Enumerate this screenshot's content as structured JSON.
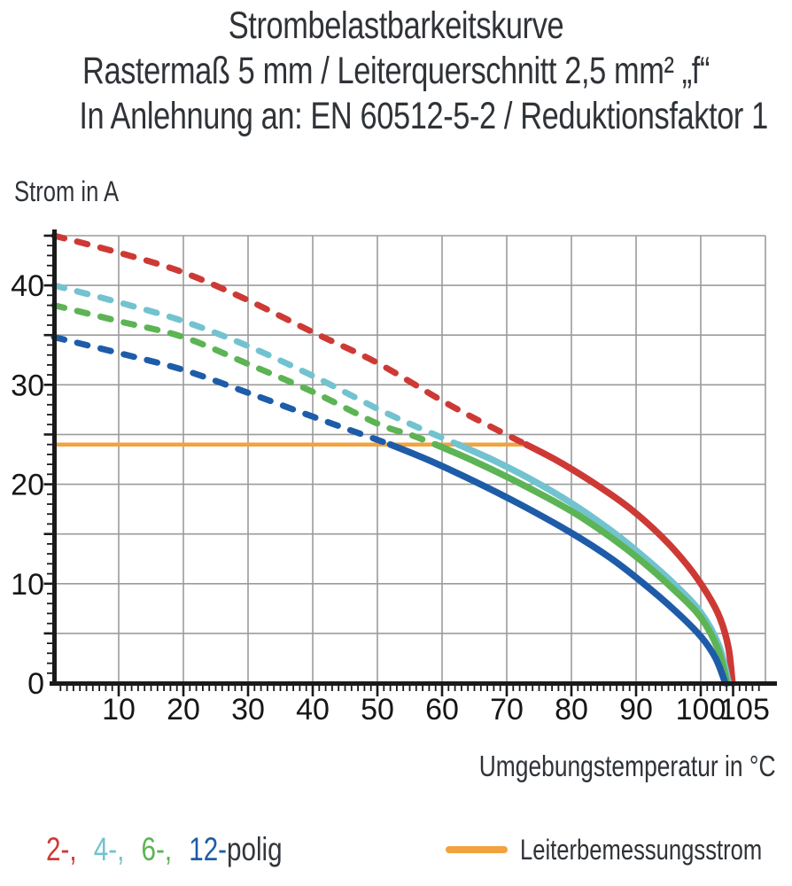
{
  "title": {
    "line1": "Strombelastbarkeitskurve",
    "line2": "Rastermaß 5 mm / Leiterquerschnitt 2,5 mm² „f“",
    "line3": "In Anlehnung an: EN 60512-5-2 / Reduktionsfaktor 1"
  },
  "chart_data": {
    "type": "line",
    "title": "Strombelastbarkeitskurve",
    "ylabel": "Strom in A",
    "xlabel": "Umgebungstemperatur in °C",
    "xlim": [
      0,
      110
    ],
    "ylim": [
      0,
      45
    ],
    "grid": true,
    "grid_step_x": 10,
    "grid_step_y": 5,
    "x_tick_labels": [
      10,
      20,
      30,
      40,
      50,
      60,
      70,
      80,
      90,
      100,
      105
    ],
    "y_tick_labels": [
      0,
      10,
      20,
      30,
      40
    ],
    "colors": {
      "grid": "#9b9b9b",
      "axis": "#1a1a1a",
      "tick_text": "#161616"
    },
    "series": [
      {
        "name": "2-polig",
        "color": "#cd3a35",
        "dashed_points": [
          [
            0,
            45
          ],
          [
            10,
            43.3
          ],
          [
            20,
            41.3
          ],
          [
            30,
            38.5
          ],
          [
            40,
            35.3
          ],
          [
            50,
            32.2
          ],
          [
            60,
            28.4
          ],
          [
            66,
            26.3
          ],
          [
            73,
            24
          ]
        ],
        "solid_points": [
          [
            73,
            24
          ],
          [
            78,
            22.3
          ],
          [
            84,
            19.9
          ],
          [
            89,
            17.6
          ],
          [
            94,
            14.7
          ],
          [
            98,
            11.8
          ],
          [
            101,
            9
          ],
          [
            103,
            6.5
          ],
          [
            104.3,
            3.5
          ],
          [
            104.9,
            0
          ]
        ]
      },
      {
        "name": "4-polig",
        "color": "#72c3cf",
        "dashed_points": [
          [
            0,
            40
          ],
          [
            10,
            38.3
          ],
          [
            20,
            36.4
          ],
          [
            30,
            33.9
          ],
          [
            40,
            30.9
          ],
          [
            50,
            27.6
          ],
          [
            56,
            25.8
          ],
          [
            62.5,
            24
          ]
        ],
        "solid_points": [
          [
            62.5,
            24
          ],
          [
            68,
            22.4
          ],
          [
            74,
            20.4
          ],
          [
            80,
            18.1
          ],
          [
            86,
            15.4
          ],
          [
            91,
            12.8
          ],
          [
            96,
            9.9
          ],
          [
            100,
            7.1
          ],
          [
            102.8,
            3.8
          ],
          [
            104.3,
            0
          ]
        ]
      },
      {
        "name": "6-polig",
        "color": "#5cb454",
        "dashed_points": [
          [
            0,
            38
          ],
          [
            10,
            36.4
          ],
          [
            20,
            34.8
          ],
          [
            30,
            32.1
          ],
          [
            40,
            29.3
          ],
          [
            50,
            26.1
          ],
          [
            55,
            25
          ],
          [
            59,
            24
          ]
        ],
        "solid_points": [
          [
            59,
            24
          ],
          [
            65,
            22.3
          ],
          [
            72,
            20.1
          ],
          [
            80,
            17.3
          ],
          [
            86,
            14.7
          ],
          [
            91,
            12.2
          ],
          [
            96,
            9.3
          ],
          [
            100,
            6.6
          ],
          [
            102.6,
            3.5
          ],
          [
            104.1,
            0
          ]
        ]
      },
      {
        "name": "12-polig",
        "color": "#1e5ca9",
        "dashed_points": [
          [
            0,
            34.8
          ],
          [
            10,
            33.2
          ],
          [
            20,
            31.5
          ],
          [
            30,
            29.2
          ],
          [
            40,
            26.8
          ],
          [
            46,
            25.4
          ],
          [
            52,
            24
          ]
        ],
        "solid_points": [
          [
            52,
            24
          ],
          [
            58,
            22.4
          ],
          [
            65,
            20.3
          ],
          [
            72,
            18
          ],
          [
            80,
            15.1
          ],
          [
            86,
            12.6
          ],
          [
            91,
            10.1
          ],
          [
            96,
            7.3
          ],
          [
            100,
            4.7
          ],
          [
            102.3,
            2.5
          ],
          [
            103.8,
            0
          ]
        ]
      }
    ],
    "reference_line": {
      "name": "Leiterbemessungsstrom",
      "color": "#f2a33f",
      "value": 24,
      "x_start": 0,
      "x_end": 73
    }
  },
  "legend": {
    "pole_items": [
      {
        "label": "2-,",
        "color": "#cd3a35"
      },
      {
        "label": "4-,",
        "color": "#72c3cf"
      },
      {
        "label": "6-,",
        "color": "#5cb454"
      },
      {
        "label": "12-",
        "color": "#1e5ca9"
      },
      {
        "label": "polig",
        "color": "#33373c"
      }
    ],
    "reference": {
      "label": "Leiterbemessungsstrom",
      "swatch_color": "#f2a33f"
    }
  }
}
